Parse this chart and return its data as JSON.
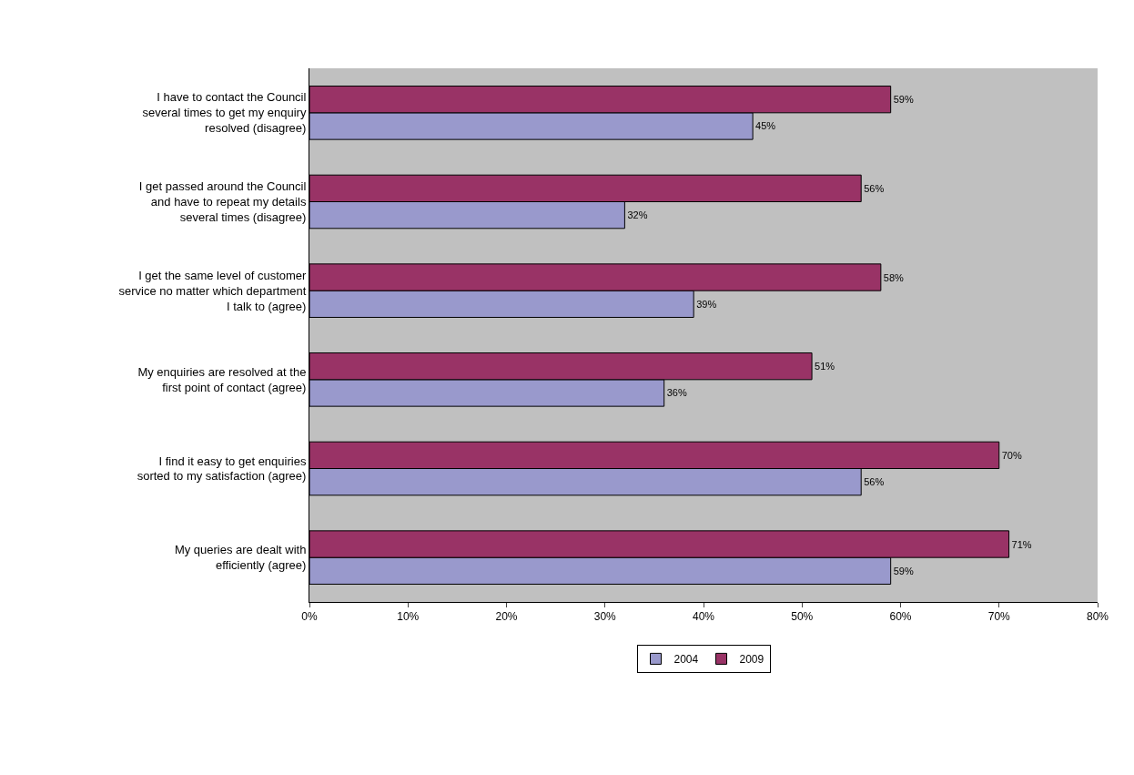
{
  "chart_data": {
    "type": "bar",
    "orientation": "horizontal",
    "categories": [
      "I have to contact the Council several times to get my enquiry resolved (disagree)",
      "I get passed around the Council and have to repeat my details several times (disagree)",
      "I get the same level of customer service no matter which department I talk to (agree)",
      "My enquiries are resolved at the first point of contact (agree)",
      "I find it easy to get enquiries sorted to my satisfaction (agree)",
      "My queries are dealt with efficiently (agree)"
    ],
    "series": [
      {
        "name": "2004",
        "color": "#9999cc",
        "values": [
          45,
          32,
          39,
          36,
          56,
          59
        ],
        "value_labels": [
          "45%",
          "32%",
          "39%",
          "36%",
          "56%",
          "59%"
        ]
      },
      {
        "name": "2009",
        "color": "#993366",
        "values": [
          59,
          56,
          58,
          51,
          70,
          71
        ],
        "value_labels": [
          "59%",
          "56%",
          "58%",
          "51%",
          "70%",
          "71%"
        ]
      }
    ],
    "xlim": [
      0,
      80
    ],
    "xticks": [
      {
        "value": 0,
        "label": "0%"
      },
      {
        "value": 10,
        "label": "10%"
      },
      {
        "value": 20,
        "label": "20%"
      },
      {
        "value": 30,
        "label": "30%"
      },
      {
        "value": 40,
        "label": "40%"
      },
      {
        "value": 50,
        "label": "50%"
      },
      {
        "value": 60,
        "label": "60%"
      },
      {
        "value": 70,
        "label": "70%"
      },
      {
        "value": 80,
        "label": "80%"
      }
    ],
    "grid": false,
    "legend": "bottom"
  }
}
